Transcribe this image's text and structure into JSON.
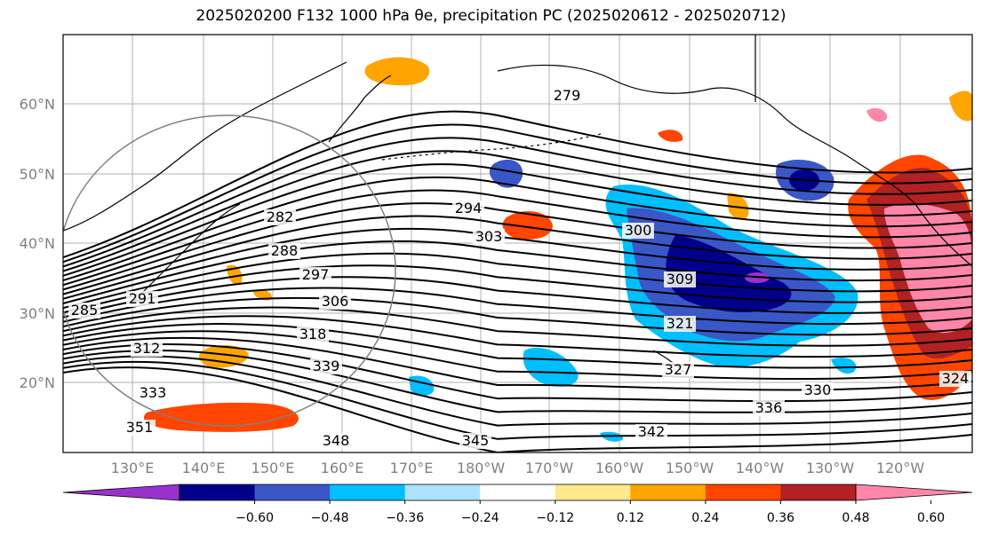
{
  "title": "2025020200 F132 1000 hPa θe, precipitation PC (2025020612 - 2025020712)",
  "lat_labels": [
    "60°N",
    "50°N",
    "40°N",
    "30°N",
    "20°N"
  ],
  "lon_labels": [
    "130°E",
    "140°E",
    "150°E",
    "160°E",
    "170°E",
    "180°W",
    "170°W",
    "160°W",
    "150°W",
    "140°W",
    "130°W",
    "120°W"
  ],
  "contour_labels": [
    "279",
    "282",
    "288",
    "285",
    "291",
    "294",
    "297",
    "300",
    "303",
    "306",
    "309",
    "312",
    "318",
    "321",
    "324",
    "327",
    "330",
    "333",
    "336",
    "339",
    "342",
    "345",
    "348",
    "351"
  ],
  "colorbar": {
    "colors": [
      "#9932CC",
      "#00008B",
      "#3A57C8",
      "#00BFFF",
      "#ADE3FF",
      "#FFFFFF",
      "#FFE98C",
      "#FFA500",
      "#FF4500",
      "#B22222",
      "#FF85A9"
    ],
    "tick_labels": [
      "−0.60",
      "−0.48",
      "−0.36",
      "−0.24",
      "−0.12",
      "0.12",
      "0.24",
      "0.36",
      "0.48",
      "0.60"
    ]
  }
}
